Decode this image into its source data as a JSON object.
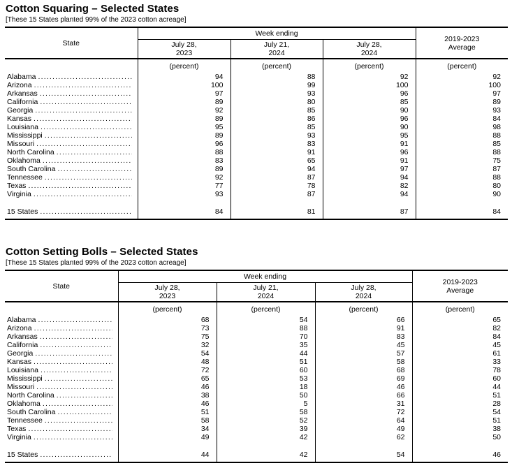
{
  "tables": [
    {
      "title": "Cotton Squaring – Selected States",
      "note": "[These 15 States planted 99% of the 2023 cotton acreage]",
      "header": {
        "state_label": "State",
        "group_label": "Week ending",
        "week_columns": [
          "July 28,\n2023",
          "July 21,\n2024",
          "July 28,\n2024"
        ],
        "average_label": "2019-2023\nAverage",
        "unit_label": "(percent)"
      },
      "rows": [
        {
          "state": "Alabama",
          "values": [
            94,
            88,
            92,
            92
          ]
        },
        {
          "state": "Arizona",
          "values": [
            100,
            99,
            100,
            100
          ]
        },
        {
          "state": "Arkansas",
          "values": [
            97,
            93,
            96,
            97
          ]
        },
        {
          "state": "California",
          "values": [
            89,
            80,
            85,
            89
          ]
        },
        {
          "state": "Georgia",
          "values": [
            92,
            85,
            90,
            93
          ]
        },
        {
          "state": "Kansas",
          "values": [
            89,
            86,
            96,
            84
          ]
        },
        {
          "state": "Louisiana",
          "values": [
            95,
            85,
            90,
            98
          ]
        },
        {
          "state": "Mississippi",
          "values": [
            89,
            93,
            95,
            88
          ]
        },
        {
          "state": "Missouri",
          "values": [
            96,
            83,
            91,
            85
          ]
        },
        {
          "state": "North Carolina",
          "values": [
            88,
            91,
            96,
            88
          ]
        },
        {
          "state": "Oklahoma",
          "values": [
            83,
            65,
            91,
            75
          ]
        },
        {
          "state": "South Carolina",
          "values": [
            89,
            94,
            97,
            87
          ]
        },
        {
          "state": "Tennessee",
          "values": [
            92,
            87,
            94,
            88
          ]
        },
        {
          "state": "Texas",
          "values": [
            77,
            78,
            82,
            80
          ]
        },
        {
          "state": "Virginia",
          "values": [
            93,
            87,
            94,
            90
          ]
        }
      ],
      "total_row": {
        "state": "15 States",
        "values": [
          84,
          81,
          87,
          84
        ]
      }
    },
    {
      "title": "Cotton Setting Bolls – Selected States",
      "note": "[These 15 States planted 99% of the 2023 cotton acreage]",
      "header": {
        "state_label": "State",
        "group_label": "Week ending",
        "week_columns": [
          "July 28,\n2023",
          "July 21,\n2024",
          "July 28,\n2024"
        ],
        "average_label": "2019-2023\nAverage",
        "unit_label": "(percent)"
      },
      "rows": [
        {
          "state": "Alabama",
          "values": [
            68,
            54,
            66,
            65
          ]
        },
        {
          "state": "Arizona",
          "values": [
            73,
            88,
            91,
            82
          ]
        },
        {
          "state": "Arkansas",
          "values": [
            75,
            70,
            83,
            84
          ]
        },
        {
          "state": "California",
          "values": [
            32,
            35,
            45,
            45
          ]
        },
        {
          "state": "Georgia",
          "values": [
            54,
            44,
            57,
            61
          ]
        },
        {
          "state": "Kansas",
          "values": [
            48,
            51,
            58,
            33
          ]
        },
        {
          "state": "Louisiana",
          "values": [
            72,
            60,
            68,
            78
          ]
        },
        {
          "state": "Mississippi",
          "values": [
            65,
            53,
            69,
            60
          ]
        },
        {
          "state": "Missouri",
          "values": [
            46,
            18,
            46,
            44
          ]
        },
        {
          "state": "North Carolina",
          "values": [
            38,
            50,
            66,
            51
          ]
        },
        {
          "state": "Oklahoma",
          "values": [
            46,
            5,
            31,
            28
          ]
        },
        {
          "state": "South Carolina",
          "values": [
            51,
            58,
            72,
            54
          ]
        },
        {
          "state": "Tennessee",
          "values": [
            58,
            52,
            64,
            51
          ]
        },
        {
          "state": "Texas",
          "values": [
            34,
            39,
            49,
            38
          ]
        },
        {
          "state": "Virginia",
          "values": [
            49,
            42,
            62,
            50
          ]
        }
      ],
      "total_row": {
        "state": "15 States",
        "values": [
          44,
          42,
          54,
          46
        ]
      }
    }
  ]
}
